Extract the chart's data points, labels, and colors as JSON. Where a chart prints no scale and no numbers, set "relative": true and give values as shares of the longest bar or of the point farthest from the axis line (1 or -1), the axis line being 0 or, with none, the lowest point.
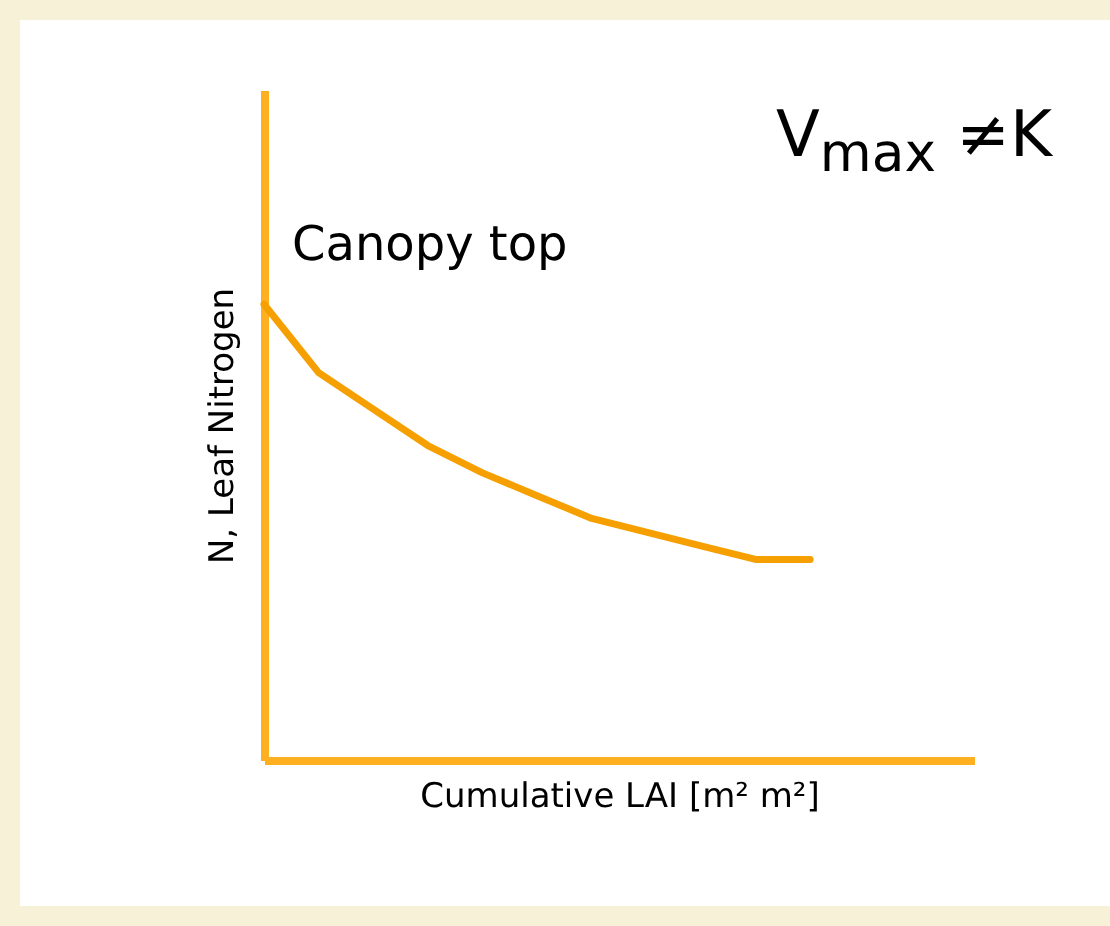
{
  "chart_data": {
    "type": "line",
    "relative": true,
    "xlabel": "Cumulative LAI [m² m²]",
    "ylabel": "N, Leaf Nitrogen",
    "annotations": [
      "Canopy top",
      "V$_{max}$ ≠K"
    ],
    "categories": [
      null,
      null,
      null,
      null,
      null,
      null,
      null,
      null,
      null,
      null,
      null,
      null,
      null,
      null
    ],
    "series": [
      {
        "color": "#f5a000",
        "values": [
          1.0,
          0.85,
          0.77,
          0.69,
          0.63,
          0.58,
          0.53,
          0.5,
          0.47,
          0.44,
          0.44,
          null,
          null,
          null
        ]
      }
    ],
    "grid": false,
    "legend": false,
    "marker": "none",
    "line_style": "solid"
  }
}
